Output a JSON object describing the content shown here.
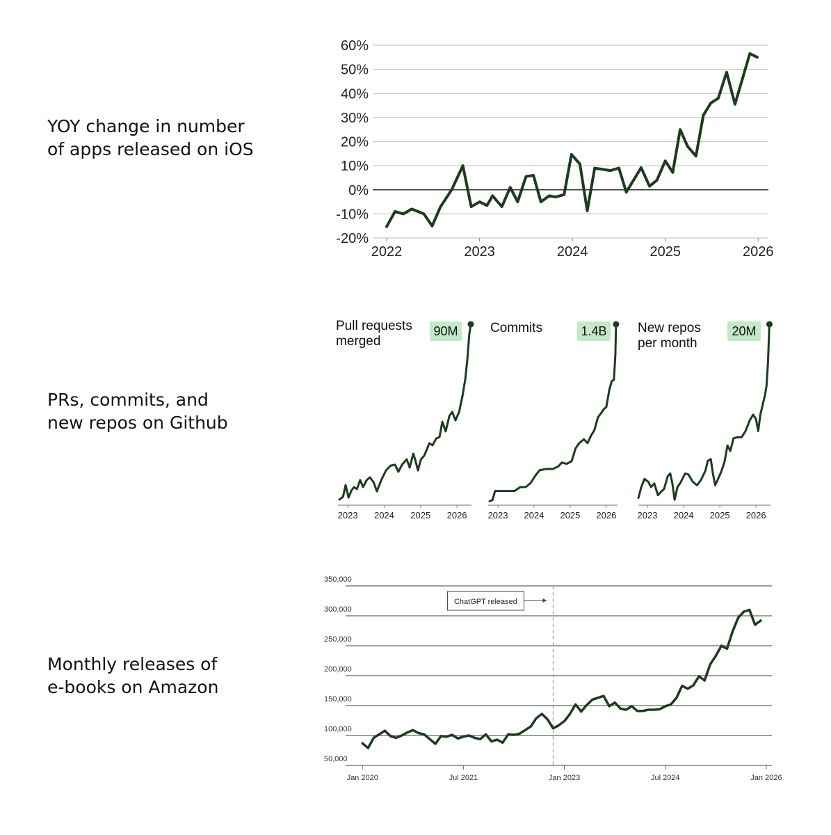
{
  "labels": [
    "YOY change in number\nof apps released on iOS",
    "PRs, commits, and\nnew repos on Github",
    "Monthly releases of\ne-books on Amazon"
  ],
  "chart_data": [
    {
      "type": "line",
      "color": "#1d3b1d",
      "grid": true,
      "zero_line": true,
      "xlim": [
        2021.85,
        2026.11
      ],
      "xticks": [
        2022,
        2023,
        2024,
        2025,
        2026
      ],
      "ylim": [
        -20,
        60
      ],
      "yticks": [
        {
          "value": -20,
          "label": "-20%"
        },
        {
          "value": -10,
          "label": "-10%"
        },
        {
          "value": 0,
          "label": "0%"
        },
        {
          "value": 10,
          "label": "10%"
        },
        {
          "value": 20,
          "label": "20%"
        },
        {
          "value": 30,
          "label": "30%"
        },
        {
          "value": 40,
          "label": "40%"
        },
        {
          "value": 50,
          "label": "50%"
        },
        {
          "value": 60,
          "label": "60%"
        }
      ],
      "x": [
        2022.0,
        2022.09,
        2022.18,
        2022.27,
        2022.4,
        2022.49,
        2022.58,
        2022.7,
        2022.82,
        2022.91,
        2023.0,
        2023.08,
        2023.14,
        2023.24,
        2023.33,
        2023.41,
        2023.5,
        2023.58,
        2023.66,
        2023.75,
        2023.82,
        2023.91,
        2023.99,
        2024.08,
        2024.16,
        2024.24,
        2024.41,
        2024.5,
        2024.58,
        2024.74,
        2024.83,
        2024.91,
        2025.0,
        2025.08,
        2025.16,
        2025.24,
        2025.33,
        2025.41,
        2025.49,
        2025.57,
        2025.66,
        2025.75,
        2025.91,
        2025.99
      ],
      "values": [
        -15.3,
        -9,
        -10,
        -8,
        -10,
        -15,
        -7,
        0,
        10,
        -7,
        -5,
        -6.5,
        -2.5,
        -7,
        1,
        -5,
        5.5,
        6,
        -5,
        -2.5,
        -3,
        -2,
        14.7,
        10.7,
        -8.7,
        9,
        8,
        9,
        -1,
        9.2,
        1.5,
        4,
        12,
        7.2,
        25,
        18,
        14,
        31,
        36,
        38,
        48.8,
        35.5,
        56.5,
        55
      ]
    },
    {
      "type": "line",
      "title": "Pull requests\nmerged",
      "color": "#1d3b1d",
      "label_color": "#c3e9c8",
      "xlim": [
        2022.73,
        2026.4
      ],
      "xticks": [
        2023,
        2024,
        2025,
        2026
      ],
      "x": [
        2022.77,
        2022.87,
        2022.94,
        2023.02,
        2023.1,
        2023.17,
        2023.25,
        2023.34,
        2023.42,
        2023.52,
        2023.61,
        2023.71,
        2023.8,
        2023.92,
        2024.05,
        2024.18,
        2024.3,
        2024.39,
        2024.49,
        2024.62,
        2024.7,
        2024.8,
        2024.85,
        2024.93,
        2025.01,
        2025.1,
        2025.18,
        2025.24,
        2025.33,
        2025.43,
        2025.52,
        2025.6,
        2025.69,
        2025.79,
        2025.87,
        2025.96,
        2026.06,
        2026.15,
        2026.23,
        2026.29,
        2026.34,
        2026.38
      ],
      "values": [
        2.8,
        4.2,
        10.0,
        3.8,
        7.3,
        9.0,
        8.0,
        12.5,
        9.0,
        12.5,
        13.8,
        11.4,
        6.9,
        12.5,
        17.3,
        19.7,
        20.1,
        16.6,
        20.1,
        22.8,
        18.7,
        25.6,
        22.8,
        17.3,
        22.8,
        24.6,
        28.0,
        30.8,
        29.8,
        33.2,
        33.9,
        41.5,
        36.7,
        44.3,
        46.4,
        42.2,
        46.4,
        54.0,
        62.7,
        73.0,
        85.2,
        90
      ],
      "value_labels": [
        null,
        null,
        null,
        null,
        null,
        null,
        null,
        null,
        null,
        null,
        null,
        null,
        null,
        null,
        null,
        null,
        null,
        null,
        null,
        null,
        null,
        null,
        null,
        null,
        null,
        null,
        null,
        null,
        null,
        null,
        null,
        null,
        null,
        null,
        null,
        null,
        null,
        null,
        null,
        null,
        null,
        "90M"
      ]
    },
    {
      "type": "line",
      "title": "Commits",
      "color": "#1d3b1d",
      "label_color": "#c3e9c8",
      "xlim": [
        2022.73,
        2026.31
      ],
      "xticks": [
        2023,
        2024,
        2025,
        2026
      ],
      "x": [
        2022.77,
        2022.85,
        2022.92,
        2023.08,
        2023.27,
        2023.46,
        2023.62,
        2023.77,
        2023.9,
        2024.04,
        2024.15,
        2024.33,
        2024.52,
        2024.67,
        2024.77,
        2024.9,
        2025.04,
        2025.15,
        2025.25,
        2025.38,
        2025.48,
        2025.58,
        2025.67,
        2025.77,
        2025.85,
        2025.92,
        2026.0,
        2026.08,
        2026.15,
        2026.21,
        2026.25,
        2026.27
      ],
      "values": [
        0.03,
        0.04,
        0.11,
        0.11,
        0.11,
        0.11,
        0.14,
        0.14,
        0.17,
        0.23,
        0.27,
        0.28,
        0.28,
        0.3,
        0.33,
        0.32,
        0.34,
        0.44,
        0.48,
        0.51,
        0.48,
        0.54,
        0.58,
        0.68,
        0.71,
        0.74,
        0.76,
        0.89,
        0.96,
        0.97,
        1.16,
        1.4
      ],
      "value_labels": [
        null,
        null,
        null,
        null,
        null,
        null,
        null,
        null,
        null,
        null,
        null,
        null,
        null,
        null,
        null,
        null,
        null,
        null,
        null,
        null,
        null,
        null,
        null,
        null,
        null,
        null,
        null,
        null,
        null,
        null,
        null,
        "1.4B"
      ]
    },
    {
      "type": "line",
      "title": "New repos\nper month",
      "color": "#1d3b1d",
      "label_color": "#c3e9c8",
      "xlim": [
        2022.75,
        2026.4
      ],
      "xticks": [
        2023,
        2024,
        2025,
        2026
      ],
      "x": [
        2022.75,
        2022.83,
        2022.92,
        2023.02,
        2023.1,
        2023.19,
        2023.29,
        2023.38,
        2023.46,
        2023.56,
        2023.63,
        2023.69,
        2023.75,
        2023.83,
        2023.9,
        2024.04,
        2024.13,
        2024.25,
        2024.37,
        2024.48,
        2024.6,
        2024.67,
        2024.75,
        2024.81,
        2024.87,
        2024.94,
        2025.04,
        2025.13,
        2025.21,
        2025.29,
        2025.38,
        2025.48,
        2025.6,
        2025.71,
        2025.83,
        2025.92,
        2026.0,
        2026.06,
        2026.12,
        2026.19,
        2026.25,
        2026.29,
        2026.33,
        2026.37
      ],
      "values": [
        0.8,
        2.0,
        2.9,
        2.6,
        2.0,
        2.4,
        1.1,
        1.5,
        1.8,
        3.2,
        3.5,
        2.4,
        0.6,
        2.0,
        2.4,
        3.5,
        3.4,
        2.6,
        2.2,
        2.8,
        3.8,
        4.9,
        5.1,
        3.5,
        2.2,
        2.8,
        3.7,
        4.8,
        6.6,
        6.0,
        7.4,
        7.5,
        7.5,
        8.2,
        9.4,
        10.0,
        9.5,
        8.2,
        10.0,
        11.2,
        12.2,
        13.2,
        15.8,
        20
      ],
      "value_labels": [
        null,
        null,
        null,
        null,
        null,
        null,
        null,
        null,
        null,
        null,
        null,
        null,
        null,
        null,
        null,
        null,
        null,
        null,
        null,
        null,
        null,
        null,
        null,
        null,
        null,
        null,
        null,
        null,
        null,
        null,
        null,
        null,
        null,
        null,
        null,
        null,
        null,
        null,
        null,
        null,
        null,
        null,
        null,
        "20M"
      ]
    },
    {
      "type": "line",
      "color": "#1d3b1d",
      "grid": true,
      "xlim": [
        "2019-10",
        "2026-02"
      ],
      "xticks": [
        {
          "value": "2020-01",
          "label": "Jan 2020"
        },
        {
          "value": "2021-07",
          "label": "Jul 2021"
        },
        {
          "value": "2023-01",
          "label": "Jan 2023"
        },
        {
          "value": "2024-07",
          "label": "Jul 2024"
        },
        {
          "value": "2026-01",
          "label": "Jan 2026"
        }
      ],
      "ylim": [
        50000,
        350000
      ],
      "yticks": [
        {
          "value": 50000,
          "label": "50,000"
        },
        {
          "value": 100000,
          "label": "100,000"
        },
        {
          "value": 150000,
          "label": "150,000"
        },
        {
          "value": 200000,
          "label": "200,000"
        },
        {
          "value": 250000,
          "label": "250,000"
        },
        {
          "value": 300000,
          "label": "300,000"
        },
        {
          "value": 350000,
          "label": "350,000"
        }
      ],
      "annotations": [
        {
          "text": "ChatGPT released",
          "x": "2022-11"
        }
      ],
      "x": [
        "2020-01",
        "2020-02",
        "2020-03",
        "2020-04",
        "2020-05",
        "2020-06",
        "2020-07",
        "2020-08",
        "2020-09",
        "2020-10",
        "2020-11",
        "2020-12",
        "2021-01",
        "2021-02",
        "2021-03",
        "2021-04",
        "2021-05",
        "2021-06",
        "2021-07",
        "2021-08",
        "2021-09",
        "2021-10",
        "2021-11",
        "2021-12",
        "2022-01",
        "2022-02",
        "2022-03",
        "2022-04",
        "2022-05",
        "2022-06",
        "2022-07",
        "2022-08",
        "2022-09",
        "2022-10",
        "2022-11",
        "2022-12",
        "2023-01",
        "2023-02",
        "2023-03",
        "2023-04",
        "2023-05",
        "2023-06",
        "2023-07",
        "2023-08",
        "2023-09",
        "2023-10",
        "2023-11",
        "2023-12",
        "2024-01",
        "2024-02",
        "2024-03",
        "2024-04",
        "2024-05",
        "2024-06",
        "2024-07",
        "2024-08",
        "2024-09",
        "2024-10",
        "2024-11",
        "2024-12",
        "2025-01",
        "2025-02",
        "2025-03",
        "2025-04",
        "2025-05",
        "2025-06",
        "2025-07",
        "2025-08",
        "2025-09",
        "2025-10",
        "2025-11",
        "2025-12"
      ],
      "values": [
        87000,
        79000,
        96000,
        102000,
        108000,
        99000,
        96000,
        100000,
        105000,
        109000,
        104000,
        102000,
        94000,
        86000,
        99000,
        98000,
        101000,
        95000,
        98000,
        100000,
        96000,
        94000,
        102000,
        90000,
        93000,
        88000,
        102000,
        101000,
        103000,
        109000,
        115000,
        129000,
        136000,
        127000,
        112000,
        117000,
        124000,
        136000,
        152000,
        140000,
        151000,
        160000,
        163000,
        166000,
        149000,
        155000,
        145000,
        143000,
        149000,
        141000,
        141000,
        143000,
        143000,
        144000,
        149000,
        152000,
        163000,
        183000,
        178000,
        184000,
        199000,
        192000,
        219000,
        233000,
        250000,
        245000,
        274000,
        297000,
        307000,
        310000,
        285000,
        292000
      ]
    }
  ]
}
